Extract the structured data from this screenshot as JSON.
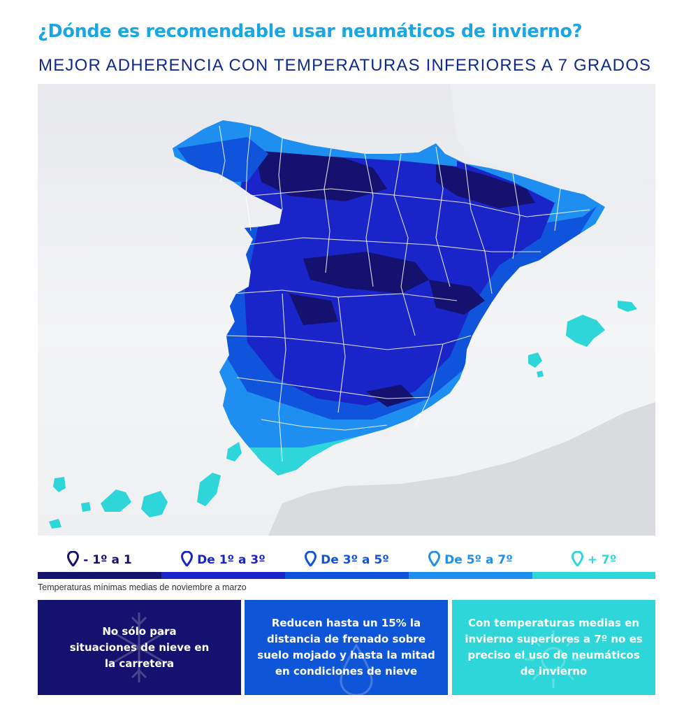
{
  "title": "¿Dónde es recomendable usar neumáticos de invierno?",
  "subtitle": "MEJOR ADHERENCIA CON TEMPERATURAS INFERIORES A 7 GRADOS",
  "map": {
    "region": "España (península, Baleares y Canarias)"
  },
  "legend": [
    {
      "label": "- 1º a 1",
      "color": "#14116f"
    },
    {
      "label": "De 1º a 3º",
      "color": "#1a25c9"
    },
    {
      "label": "De 3º a 5º",
      "color": "#1154dc"
    },
    {
      "label": "De 5º a 7º",
      "color": "#1e8ef0"
    },
    {
      "label": "+ 7º",
      "color": "#2fd6d9"
    }
  ],
  "note": "Temperaturas mínimas medias de noviembre a marzo",
  "boxes": [
    {
      "text": "No sólo para situaciones de nieve en la carretera",
      "color": "#14116f",
      "icon": "snowflake-icon"
    },
    {
      "text": "Reducen hasta un 15% la distancia de frenado sobre suelo mojado y hasta la mitad en condiciones de nieve",
      "color": "#0f55d8",
      "icon": "raindrop-icon"
    },
    {
      "text": "Con temperaturas medias en invierno superiores a 7º no es preciso el uso de neumáticos de invierno",
      "color": "#2fd6d9",
      "icon": "sun-icon"
    }
  ]
}
